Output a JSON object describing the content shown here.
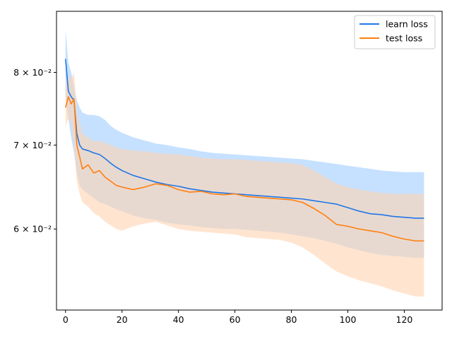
{
  "chart_data": {
    "type": "line",
    "title": "",
    "xlabel": "",
    "ylabel": "",
    "xlim": [
      -3.2,
      133.4
    ],
    "ylim": [
      0.0517,
      0.0895
    ],
    "y_scale": "log",
    "grid": false,
    "legend_placement": "top-right",
    "x_ticks": [
      0,
      20,
      40,
      60,
      80,
      100,
      120
    ],
    "x_tick_labels": [
      "0",
      "20",
      "40",
      "60",
      "80",
      "100",
      "120"
    ],
    "y_ticks": [
      0.06,
      0.07,
      0.08
    ],
    "y_tick_labels": [
      "6 × 10⁻²",
      "7 × 10⁻²",
      "8 × 10⁻²"
    ],
    "x_knots": [
      0,
      1,
      2,
      3,
      4,
      5,
      6,
      8,
      10,
      12,
      14,
      16,
      18,
      20,
      24,
      28,
      32,
      36,
      40,
      44,
      48,
      52,
      56,
      60,
      64,
      68,
      72,
      76,
      80,
      84,
      88,
      92,
      96,
      100,
      104,
      108,
      112,
      116,
      120,
      124,
      127
    ],
    "series": [
      {
        "name": "learn loss",
        "color": "#1f77e6",
        "band_color": "#bcdcff",
        "values": [
          0.082,
          0.0773,
          0.0765,
          0.076,
          0.0715,
          0.07,
          0.0695,
          0.0693,
          0.069,
          0.0688,
          0.0683,
          0.0677,
          0.0672,
          0.0668,
          0.0662,
          0.0658,
          0.0654,
          0.0651,
          0.0649,
          0.0646,
          0.0644,
          0.0642,
          0.0641,
          0.064,
          0.0639,
          0.0638,
          0.0637,
          0.0636,
          0.0635,
          0.0634,
          0.0632,
          0.063,
          0.0628,
          0.0624,
          0.062,
          0.0617,
          0.0616,
          0.0614,
          0.0613,
          0.0612,
          0.0612
        ],
        "lower": [
          0.0765,
          0.0735,
          0.071,
          0.069,
          0.0665,
          0.065,
          0.0645,
          0.064,
          0.0635,
          0.063,
          0.0628,
          0.0625,
          0.0622,
          0.062,
          0.0615,
          0.0612,
          0.061,
          0.0607,
          0.0605,
          0.0604,
          0.0602,
          0.0601,
          0.06,
          0.06,
          0.0599,
          0.0598,
          0.0597,
          0.0596,
          0.0594,
          0.0592,
          0.059,
          0.0587,
          0.0584,
          0.058,
          0.0577,
          0.0574,
          0.0572,
          0.0571,
          0.057,
          0.0569,
          0.0569
        ],
        "upper": [
          0.0865,
          0.0815,
          0.08,
          0.078,
          0.076,
          0.075,
          0.0743,
          0.074,
          0.074,
          0.0738,
          0.0733,
          0.0725,
          0.072,
          0.0716,
          0.071,
          0.0706,
          0.0702,
          0.07,
          0.0697,
          0.0695,
          0.0692,
          0.069,
          0.0689,
          0.0688,
          0.0687,
          0.0686,
          0.0685,
          0.0684,
          0.0683,
          0.0682,
          0.068,
          0.0678,
          0.0676,
          0.0674,
          0.0672,
          0.067,
          0.0668,
          0.0667,
          0.0666,
          0.0666,
          0.0666
        ]
      },
      {
        "name": "test loss",
        "color": "#ff7f0e",
        "band_color": "#ffd3b0",
        "values": [
          0.075,
          0.0765,
          0.0755,
          0.0762,
          0.07,
          0.0685,
          0.067,
          0.0675,
          0.0665,
          0.0668,
          0.066,
          0.0655,
          0.065,
          0.0648,
          0.0645,
          0.0648,
          0.0652,
          0.065,
          0.0645,
          0.0642,
          0.0643,
          0.064,
          0.0639,
          0.064,
          0.0637,
          0.0636,
          0.0635,
          0.0634,
          0.0633,
          0.063,
          0.0623,
          0.0615,
          0.0605,
          0.0603,
          0.06,
          0.0598,
          0.0596,
          0.0592,
          0.0589,
          0.0587,
          0.0587
        ],
        "lower": [
          0.0725,
          0.0735,
          0.073,
          0.07,
          0.0655,
          0.064,
          0.063,
          0.0625,
          0.0618,
          0.0614,
          0.0608,
          0.0604,
          0.06,
          0.0598,
          0.0603,
          0.0606,
          0.0608,
          0.0604,
          0.06,
          0.0598,
          0.0597,
          0.0596,
          0.0595,
          0.0594,
          0.0591,
          0.059,
          0.0589,
          0.0588,
          0.0585,
          0.058,
          0.0572,
          0.0563,
          0.0555,
          0.055,
          0.0546,
          0.0543,
          0.054,
          0.0536,
          0.0533,
          0.053,
          0.053
        ],
        "upper": [
          0.0785,
          0.0795,
          0.079,
          0.08,
          0.0745,
          0.073,
          0.0715,
          0.071,
          0.0705,
          0.0705,
          0.0703,
          0.07,
          0.0697,
          0.0695,
          0.0693,
          0.0692,
          0.069,
          0.0689,
          0.0688,
          0.0686,
          0.0684,
          0.0683,
          0.0682,
          0.0682,
          0.0681,
          0.068,
          0.0679,
          0.0678,
          0.0677,
          0.0675,
          0.0668,
          0.066,
          0.0652,
          0.0648,
          0.0645,
          0.0643,
          0.0641,
          0.064,
          0.064,
          0.064,
          0.064
        ]
      }
    ]
  }
}
